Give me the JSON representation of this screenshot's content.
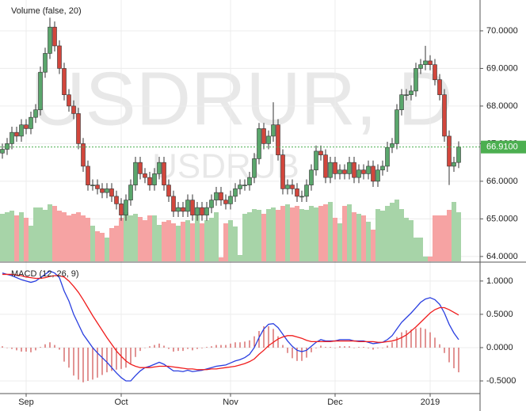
{
  "chart_data": [
    {
      "type": "candlestick",
      "watermark": "USDRUR, D",
      "watermark_sub": "USDRUB",
      "volume_label": "Volume (false, 20)",
      "categories": [
        null,
        null,
        null,
        null,
        null,
        "Sep",
        null,
        null,
        null,
        null,
        null,
        null,
        null,
        null,
        null,
        null,
        null,
        null,
        null,
        null,
        null,
        null,
        null,
        null,
        null,
        "Oct",
        null,
        null,
        null,
        null,
        null,
        null,
        null,
        null,
        null,
        null,
        null,
        null,
        null,
        null,
        null,
        null,
        null,
        null,
        null,
        null,
        null,
        null,
        "Nov",
        null,
        null,
        null,
        null,
        null,
        null,
        null,
        null,
        null,
        null,
        null,
        null,
        null,
        null,
        null,
        null,
        null,
        null,
        null,
        null,
        null,
        "Dec",
        null,
        null,
        null,
        null,
        null,
        null,
        null,
        null,
        null,
        null,
        null,
        null,
        null,
        null,
        null,
        null,
        null,
        null,
        null,
        "2019",
        null,
        null,
        null,
        null,
        null,
        null
      ],
      "open": [
        66.75,
        66.85,
        67.0,
        67.3,
        67.2,
        67.5,
        67.4,
        67.7,
        67.9,
        68.9,
        69.4,
        70.1,
        69.6,
        69.0,
        68.3,
        68.0,
        67.8,
        67.0,
        66.4,
        65.9,
        65.9,
        65.8,
        65.7,
        65.8,
        65.6,
        65.4,
        65.1,
        65.5,
        65.9,
        66.5,
        66.2,
        66.1,
        65.9,
        66.2,
        66.5,
        65.9,
        65.6,
        65.2,
        65.3,
        65.2,
        65.5,
        65.1,
        65.3,
        65.1,
        65.3,
        65.5,
        65.7,
        65.5,
        65.4,
        65.6,
        65.8,
        65.9,
        65.9,
        66.1,
        66.6,
        67.4,
        67.0,
        67.2,
        67.5,
        66.7,
        65.8,
        65.9,
        65.8,
        65.6,
        65.6,
        65.9,
        66.3,
        66.8,
        66.7,
        66.1,
        66.5,
        66.2,
        66.3,
        66.2,
        66.5,
        66.1,
        66.3,
        66.2,
        66.4,
        66.0,
        66.3,
        66.4,
        66.9,
        67.0,
        67.9,
        68.3,
        68.3,
        68.4,
        69.0,
        69.1,
        69.2,
        69.1,
        68.7,
        68.3,
        67.2,
        66.4,
        66.5
      ],
      "high": [
        67.0,
        67.15,
        67.45,
        67.45,
        67.65,
        67.65,
        67.85,
        68.05,
        69.05,
        69.55,
        70.35,
        70.25,
        69.75,
        69.15,
        68.45,
        68.15,
        67.95,
        67.15,
        66.55,
        66.05,
        66.05,
        65.95,
        65.95,
        65.95,
        65.75,
        65.55,
        65.65,
        66.05,
        66.65,
        66.65,
        66.35,
        66.25,
        66.35,
        66.65,
        66.65,
        66.05,
        65.75,
        65.45,
        65.45,
        65.65,
        65.65,
        65.45,
        65.45,
        65.45,
        65.65,
        65.85,
        65.85,
        65.65,
        65.75,
        65.95,
        66.05,
        66.05,
        66.25,
        66.75,
        67.55,
        67.55,
        67.35,
        68.1,
        67.65,
        66.85,
        66.05,
        66.05,
        65.95,
        65.75,
        66.05,
        66.45,
        66.95,
        66.95,
        66.85,
        66.65,
        66.65,
        66.45,
        66.45,
        66.65,
        66.65,
        66.45,
        66.45,
        66.55,
        66.55,
        66.45,
        66.55,
        67.05,
        67.15,
        68.05,
        68.45,
        68.45,
        68.55,
        69.15,
        69.25,
        69.6,
        69.35,
        69.25,
        68.85,
        68.45,
        67.35,
        66.65,
        67.06
      ],
      "low": [
        66.6,
        66.7,
        66.85,
        67.05,
        67.05,
        67.25,
        67.25,
        67.55,
        67.75,
        68.75,
        69.25,
        69.45,
        68.85,
        68.15,
        67.85,
        67.65,
        66.85,
        66.25,
        65.75,
        65.75,
        65.65,
        65.55,
        65.55,
        65.45,
        65.25,
        64.95,
        64.95,
        65.35,
        65.75,
        66.05,
        65.95,
        65.75,
        65.75,
        66.05,
        65.75,
        65.45,
        65.05,
        65.05,
        65.05,
        65.05,
        64.95,
        64.95,
        64.95,
        64.95,
        65.15,
        65.35,
        65.35,
        65.25,
        65.25,
        65.45,
        65.65,
        65.75,
        65.75,
        65.95,
        66.45,
        66.85,
        66.85,
        67.05,
        66.55,
        65.65,
        65.65,
        65.65,
        65.45,
        65.45,
        65.45,
        65.75,
        66.15,
        66.55,
        65.95,
        65.95,
        66.05,
        66.05,
        66.05,
        66.05,
        65.95,
        65.95,
        66.05,
        66.05,
        65.85,
        65.85,
        66.15,
        66.25,
        66.75,
        66.85,
        67.75,
        68.15,
        68.15,
        68.25,
        68.85,
        68.95,
        68.95,
        68.55,
        68.15,
        67.05,
        65.9,
        66.25,
        66.35
      ],
      "close": [
        66.85,
        67.0,
        67.3,
        67.2,
        67.5,
        67.4,
        67.7,
        67.9,
        68.9,
        69.4,
        70.1,
        69.6,
        69.0,
        68.3,
        68.0,
        67.8,
        67.0,
        66.4,
        65.9,
        65.9,
        65.8,
        65.7,
        65.8,
        65.6,
        65.4,
        65.1,
        65.5,
        65.9,
        66.5,
        66.2,
        66.1,
        65.9,
        66.2,
        66.5,
        65.9,
        65.6,
        65.2,
        65.3,
        65.2,
        65.5,
        65.1,
        65.3,
        65.1,
        65.3,
        65.5,
        65.7,
        65.5,
        65.4,
        65.6,
        65.8,
        65.9,
        65.9,
        66.1,
        66.6,
        67.4,
        67.0,
        67.2,
        67.5,
        66.7,
        65.8,
        65.9,
        65.8,
        65.6,
        65.6,
        65.9,
        66.3,
        66.8,
        66.7,
        66.1,
        66.5,
        66.2,
        66.3,
        66.2,
        66.5,
        66.1,
        66.3,
        66.2,
        66.4,
        66.0,
        66.3,
        66.4,
        66.9,
        67.0,
        67.9,
        68.3,
        68.3,
        68.4,
        69.0,
        69.1,
        69.2,
        69.1,
        68.7,
        68.3,
        67.2,
        66.4,
        66.5,
        66.91
      ],
      "volume": [
        60,
        62,
        64,
        58,
        62,
        55,
        45,
        68,
        68,
        65,
        72,
        70,
        64,
        62,
        58,
        60,
        62,
        58,
        55,
        45,
        38,
        36,
        30,
        42,
        45,
        55,
        62,
        58,
        60,
        56,
        52,
        58,
        58,
        46,
        50,
        52,
        48,
        45,
        50,
        52,
        48,
        60,
        48,
        52,
        55,
        62,
        5,
        48,
        52,
        44,
        8,
        60,
        62,
        66,
        65,
        60,
        66,
        68,
        65,
        70,
        72,
        68,
        70,
        66,
        65,
        70,
        68,
        70,
        72,
        75,
        55,
        48,
        70,
        72,
        62,
        60,
        58,
        50,
        40,
        66,
        64,
        70,
        74,
        78,
        66,
        55,
        52,
        30,
        30,
        6,
        6,
        58,
        58,
        58,
        65,
        75,
        62
      ],
      "up_color": "#5aa66c",
      "down_color": "#d2463c",
      "volume_up_color": "#a7d4a8",
      "volume_down_color": "#f6a3a3",
      "ylim": [
        63.85,
        70.82
      ],
      "yticks": [
        {
          "value": 64,
          "label": "64.0000"
        },
        {
          "value": 65,
          "label": "65.0000"
        },
        {
          "value": 66,
          "label": "66.0000"
        },
        {
          "value": 67,
          "label": "67.0000"
        },
        {
          "value": 68,
          "label": "68.0000"
        },
        {
          "value": 69,
          "label": "69.0000"
        },
        {
          "value": 70,
          "label": "70.0000"
        }
      ],
      "price_line": {
        "value": 66.91,
        "label": "66.9100",
        "color": "#4caf50"
      },
      "grid": true
    },
    {
      "type": "macd",
      "title": "MACD (12, 26, 9)",
      "series": [
        {
          "color": "#2a3fe0",
          "values": [
            1.12,
            1.1,
            1.08,
            1.05,
            1.02,
            1.0,
            0.98,
            1.0,
            1.05,
            1.1,
            1.15,
            1.12,
            1.05,
            0.85,
            0.7,
            0.5,
            0.35,
            0.2,
            0.1,
            0.0,
            -0.08,
            -0.15,
            -0.22,
            -0.3,
            -0.38,
            -0.45,
            -0.5,
            -0.5,
            -0.42,
            -0.35,
            -0.3,
            -0.28,
            -0.25,
            -0.22,
            -0.25,
            -0.3,
            -0.35,
            -0.35,
            -0.36,
            -0.34,
            -0.36,
            -0.35,
            -0.34,
            -0.32,
            -0.3,
            -0.28,
            -0.27,
            -0.26,
            -0.23,
            -0.2,
            -0.18,
            -0.15,
            -0.1,
            0.0,
            0.15,
            0.28,
            0.35,
            0.36,
            0.3,
            0.2,
            0.1,
            0.02,
            -0.04,
            -0.06,
            -0.04,
            0.02,
            0.08,
            0.12,
            0.1,
            0.1,
            0.1,
            0.12,
            0.12,
            0.12,
            0.1,
            0.1,
            0.1,
            0.08,
            0.06,
            0.07,
            0.08,
            0.12,
            0.18,
            0.28,
            0.38,
            0.45,
            0.52,
            0.6,
            0.68,
            0.73,
            0.75,
            0.72,
            0.65,
            0.52,
            0.35,
            0.22,
            0.12
          ]
        },
        {
          "color": "#f01c1c",
          "values": [
            1.1,
            1.1,
            1.1,
            1.09,
            1.08,
            1.06,
            1.05,
            1.04,
            1.04,
            1.05,
            1.07,
            1.08,
            1.08,
            1.06,
            1.0,
            0.92,
            0.83,
            0.72,
            0.6,
            0.48,
            0.37,
            0.26,
            0.15,
            0.05,
            -0.05,
            -0.13,
            -0.2,
            -0.25,
            -0.28,
            -0.3,
            -0.3,
            -0.3,
            -0.29,
            -0.28,
            -0.28,
            -0.28,
            -0.29,
            -0.3,
            -0.31,
            -0.32,
            -0.32,
            -0.33,
            -0.33,
            -0.33,
            -0.32,
            -0.32,
            -0.31,
            -0.3,
            -0.29,
            -0.28,
            -0.26,
            -0.24,
            -0.21,
            -0.17,
            -0.1,
            -0.04,
            0.03,
            0.08,
            0.13,
            0.16,
            0.18,
            0.18,
            0.16,
            0.14,
            0.11,
            0.09,
            0.09,
            0.09,
            0.09,
            0.09,
            0.1,
            0.1,
            0.1,
            0.1,
            0.1,
            0.09,
            0.09,
            0.09,
            0.09,
            0.08,
            0.08,
            0.09,
            0.1,
            0.12,
            0.15,
            0.19,
            0.25,
            0.31,
            0.38,
            0.45,
            0.52,
            0.57,
            0.6,
            0.6,
            0.57,
            0.53,
            0.49
          ]
        }
      ],
      "histogram": {
        "color": "#c62828",
        "values": [
          0.02,
          0,
          -0.02,
          -0.04,
          -0.06,
          -0.06,
          -0.07,
          -0.04,
          0.01,
          0.05,
          0.08,
          0.04,
          -0.03,
          -0.21,
          -0.3,
          -0.42,
          -0.48,
          -0.52,
          -0.5,
          -0.48,
          -0.45,
          -0.41,
          -0.37,
          -0.35,
          -0.33,
          -0.32,
          -0.3,
          -0.25,
          -0.14,
          -0.05,
          0,
          0.02,
          0.04,
          0.06,
          0.03,
          -0.02,
          -0.06,
          -0.05,
          -0.05,
          -0.02,
          -0.04,
          -0.02,
          -0.01,
          0.01,
          0.02,
          0.04,
          0.04,
          0.04,
          0.06,
          0.08,
          0.08,
          0.09,
          0.11,
          0.17,
          0.25,
          0.32,
          0.32,
          0.28,
          0.17,
          0.04,
          -0.08,
          -0.16,
          -0.2,
          -0.2,
          -0.15,
          -0.07,
          -0.01,
          0.03,
          0.01,
          0.01,
          0,
          0.02,
          0.02,
          0.02,
          0,
          0.01,
          0.01,
          -0.01,
          -0.03,
          -0.01,
          0,
          0.03,
          0.08,
          0.16,
          0.23,
          0.26,
          0.27,
          0.29,
          0.3,
          0.28,
          0.23,
          0.15,
          0.05,
          -0.08,
          -0.22,
          -0.31,
          -0.37
        ]
      },
      "ylim": [
        -0.69,
        1.26
      ],
      "yticks": [
        {
          "value": -0.5,
          "label": "-0.5000"
        },
        {
          "value": 0,
          "label": "0.0000"
        },
        {
          "value": 0.5,
          "label": "0.5000"
        },
        {
          "value": 1,
          "label": "1.0000"
        }
      ],
      "grid": true
    }
  ]
}
